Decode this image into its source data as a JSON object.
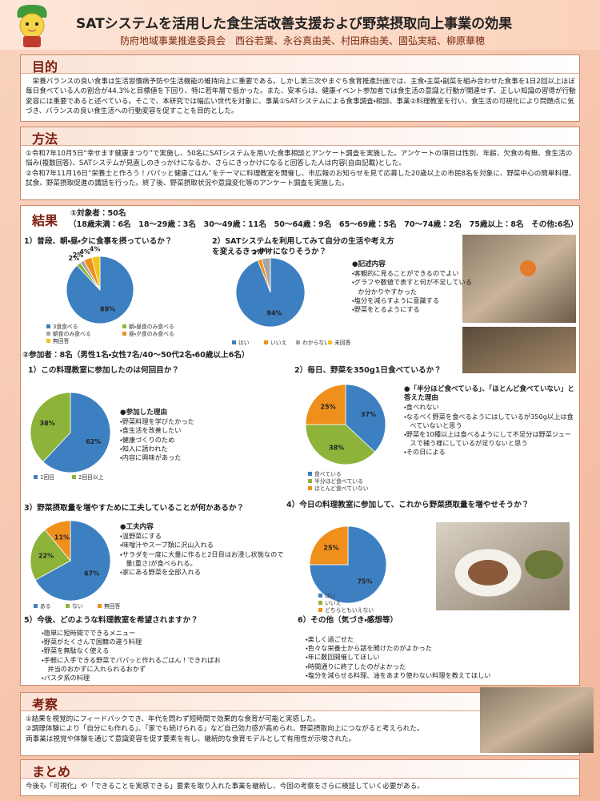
{
  "header": {
    "title": "SATシステムを活用した食生活改善支援および野菜摂取向上事業の効果",
    "authors": "防府地域事業推進委員会　西谷若葉、永谷真由美、村田麻由美、國弘実結、柳原華穂"
  },
  "purpose": {
    "heading": "目的",
    "body": "栄養バランスの良い食事は生活習慣病予防や生活機能の維持向上に重要である。しかし第三次やまぐち食育推進計画では、主食・主菜・副菜を組み合わせた食事を1日2回以上ほぼ毎日食べている人の割合が44.3%と目標値を下回り、特に若年層で低かった。また、安本らは、健康イベント参加者では食生活の意識と行動が関連せず、正しい知識の習得が行動変容には重要であると述べている。そこで、本研究では幅広い世代を対象に、事業①SATシステムによる食事調査・相談、事業②料理教室を行い、食生活の可視化により問題点に気づき、バランスの良い食生活への行動変容を促すことを目的とした。"
  },
  "method": {
    "heading": "方法",
    "paragraphs": [
      "①令和7年10月5日“幸せます健康まつり”で実施し、50名にSATシステムを用いた食事相談とアンケート調査を実施した。アンケートの項目は性別、年齢、欠食の有無、食生活の悩み(複数回答)、SATシステムが見直しのきっかけになるか、さらにきっかけになると回答した人は内容(自由記載)とした。",
      "②令和7年11月16日“栄養士と作ろう！パパッと健康ごはん”をテーマに料理教室を開催し、市広報のお知らせを見て応募した20歳以上の市民8名を対象に、野菜中心の簡単料理、試食、野菜摂取促進の講話を行った。終了後、野菜摂取状況や意識変化等のアンケート調査を実施した。"
    ]
  },
  "results": {
    "heading": "結果",
    "subjects": "①対象者：50名",
    "age_breakdown": "（18歳未満：6名　18～29歳：3名　30～49歳：11名　50～64歳：9名　65～69歳：5名　70～74歳：2名　75歳以上：8名　その他:6名）",
    "participants": "②参加者：8名（男性1名・女性7名/40～50代2名・60歳以上6名）",
    "charts": [
      {
        "type": "pie",
        "title": "1）普段、朝・昼・夕に食事を摂っているか？",
        "categories": [
          "3食食べる",
          "朝・昼食のみ食べる",
          "朝食のみ食べる",
          "昼・夕食のみ食べる",
          "無回答"
        ],
        "values": [
          88,
          2,
          2,
          4,
          4
        ],
        "value_labels": [
          "88%",
          "2%",
          "2%",
          "4%",
          "4%"
        ],
        "colors": [
          "#3d80c2",
          "#8db33a",
          "#a6a6a6",
          "#ef8f1c",
          "#f3c21a"
        ]
      },
      {
        "type": "pie",
        "title": "2）SATシステムを利用してみて自分の生活や考え方を変えるきっかけになりそうか？",
        "categories": [
          "はい",
          "いいえ",
          "わからない",
          "未回答"
        ],
        "values": [
          94,
          2,
          4,
          0
        ],
        "value_labels": [
          "94%",
          "2%",
          "4%",
          null
        ],
        "colors": [
          "#3d80c2",
          "#ef8f1c",
          "#a6a6a6",
          "#f3c21a"
        ]
      },
      {
        "type": "pie",
        "title": "1）この料理教室に参加したのは何回目か？",
        "categories": [
          "1回目",
          "2回目以上"
        ],
        "values": [
          62,
          38
        ],
        "value_labels": [
          "62%",
          "38%"
        ],
        "colors": [
          "#3d80c2",
          "#8db33a"
        ]
      },
      {
        "type": "pie",
        "title": "2）毎日、野菜を350g1日食べているか？",
        "categories": [
          "食べている",
          "半分ほど食べている",
          "ほとんど食べていない"
        ],
        "values": [
          37,
          38,
          25
        ],
        "value_labels": [
          "37%",
          "38%",
          "25%"
        ],
        "colors": [
          "#3d80c2",
          "#8db33a",
          "#ef8f1c"
        ]
      },
      {
        "type": "pie",
        "title": "3）野菜摂取量を増やすために工夫していることが何かあるか？",
        "categories": [
          "ある",
          "ない",
          "無回答"
        ],
        "values": [
          67,
          22,
          11
        ],
        "value_labels": [
          "67%",
          "22%",
          "11%"
        ],
        "colors": [
          "#3d80c2",
          "#8db33a",
          "#ef8f1c"
        ]
      },
      {
        "type": "pie",
        "title": "4）今日の料理教室に参加して、これから野菜摂取量を増やせそうか？",
        "categories": [
          "はい",
          "いいえ",
          "どちらともいえない"
        ],
        "values": [
          75,
          0,
          25
        ],
        "value_labels": [
          "75%",
          null,
          "25%"
        ],
        "colors": [
          "#3d80c2",
          "#8db33a",
          "#ef8f1c"
        ]
      }
    ],
    "notes": [
      {
        "heading": "●記述内容",
        "items": [
          "・客観的に見ることができるのでよい",
          "・グラフや数値で表すと何が不足しているか分かりやすかった",
          "・塩分を減らすように意識する",
          "・野菜をとるようにする"
        ]
      },
      {
        "heading": "●参加した理由",
        "items": [
          "・野菜料理を学びたかった",
          "・食生活を改善したい",
          "・健康づくりのため",
          "・知人に誘われた",
          "・内容に興味があった"
        ]
      },
      {
        "heading": "●「半分ほど食べている」、「ほとんど食べていない」と答えた理由",
        "items": [
          "・食べれない",
          "・なるべく野菜を食べるようにはしているが350g以上は食べていないと思う",
          "・野菜を10種以上は食べるようにして不足分は野菜ジュースで補う様にしているが足りないと思う",
          "・その日による"
        ]
      },
      {
        "heading": "●工夫内容",
        "items": [
          "・温野菜にする",
          "・味噌汁やスープ類に沢山入れる",
          "・サラダを一度に大量に作ると2日目はお浸し状態なので量(重さ)が食べられる。",
          "・家にある野菜を全部入れる"
        ]
      }
    ],
    "wishes": {
      "title": "5）今後、どのような料理教室を希望されますか？",
      "items": [
        "・簡単に短時間でできるメニュー",
        "・野菜がたくさんで国籍の違う料理",
        "・野菜を無駄なく使える",
        "・手軽に入手できる野菜でパパッと作れるごはん！できればお弁当のおかずに入れられるおかず",
        "・パスタ系の料理"
      ]
    },
    "others": {
      "title": "6）その他（気づき・感想等）",
      "items": [
        "・楽しく過ごせた",
        "・色々な栄養士から話を聞けたのがよかった",
        "・年に数回開催してほしい",
        "・時間通りに終了したのがよかった",
        "・塩分を減らせる料理、油をあまり使わない料理を教えてほしい"
      ]
    }
  },
  "discussion": {
    "heading": "考察",
    "paragraphs": [
      "①結果を視覚的にフィードバックでき、年代を問わず短時間で効果的な食育が可能と実感した。",
      "②調理体験により「自分にも作れる」、「家でも続けられる」など自己効力感が高められ、野菜摂取向上につながると考えられた。",
      "両事業は視覚や体験を通じて意識変容を促す要素を有し、継続的な食育モデルとして有用性が示唆された。"
    ]
  },
  "summary": {
    "heading": "まとめ",
    "body": "今後も「可視化」や「できることを実感できる」要素を取り入れた事業を継続し、今回の考察をさらに検証していく必要がある。"
  }
}
